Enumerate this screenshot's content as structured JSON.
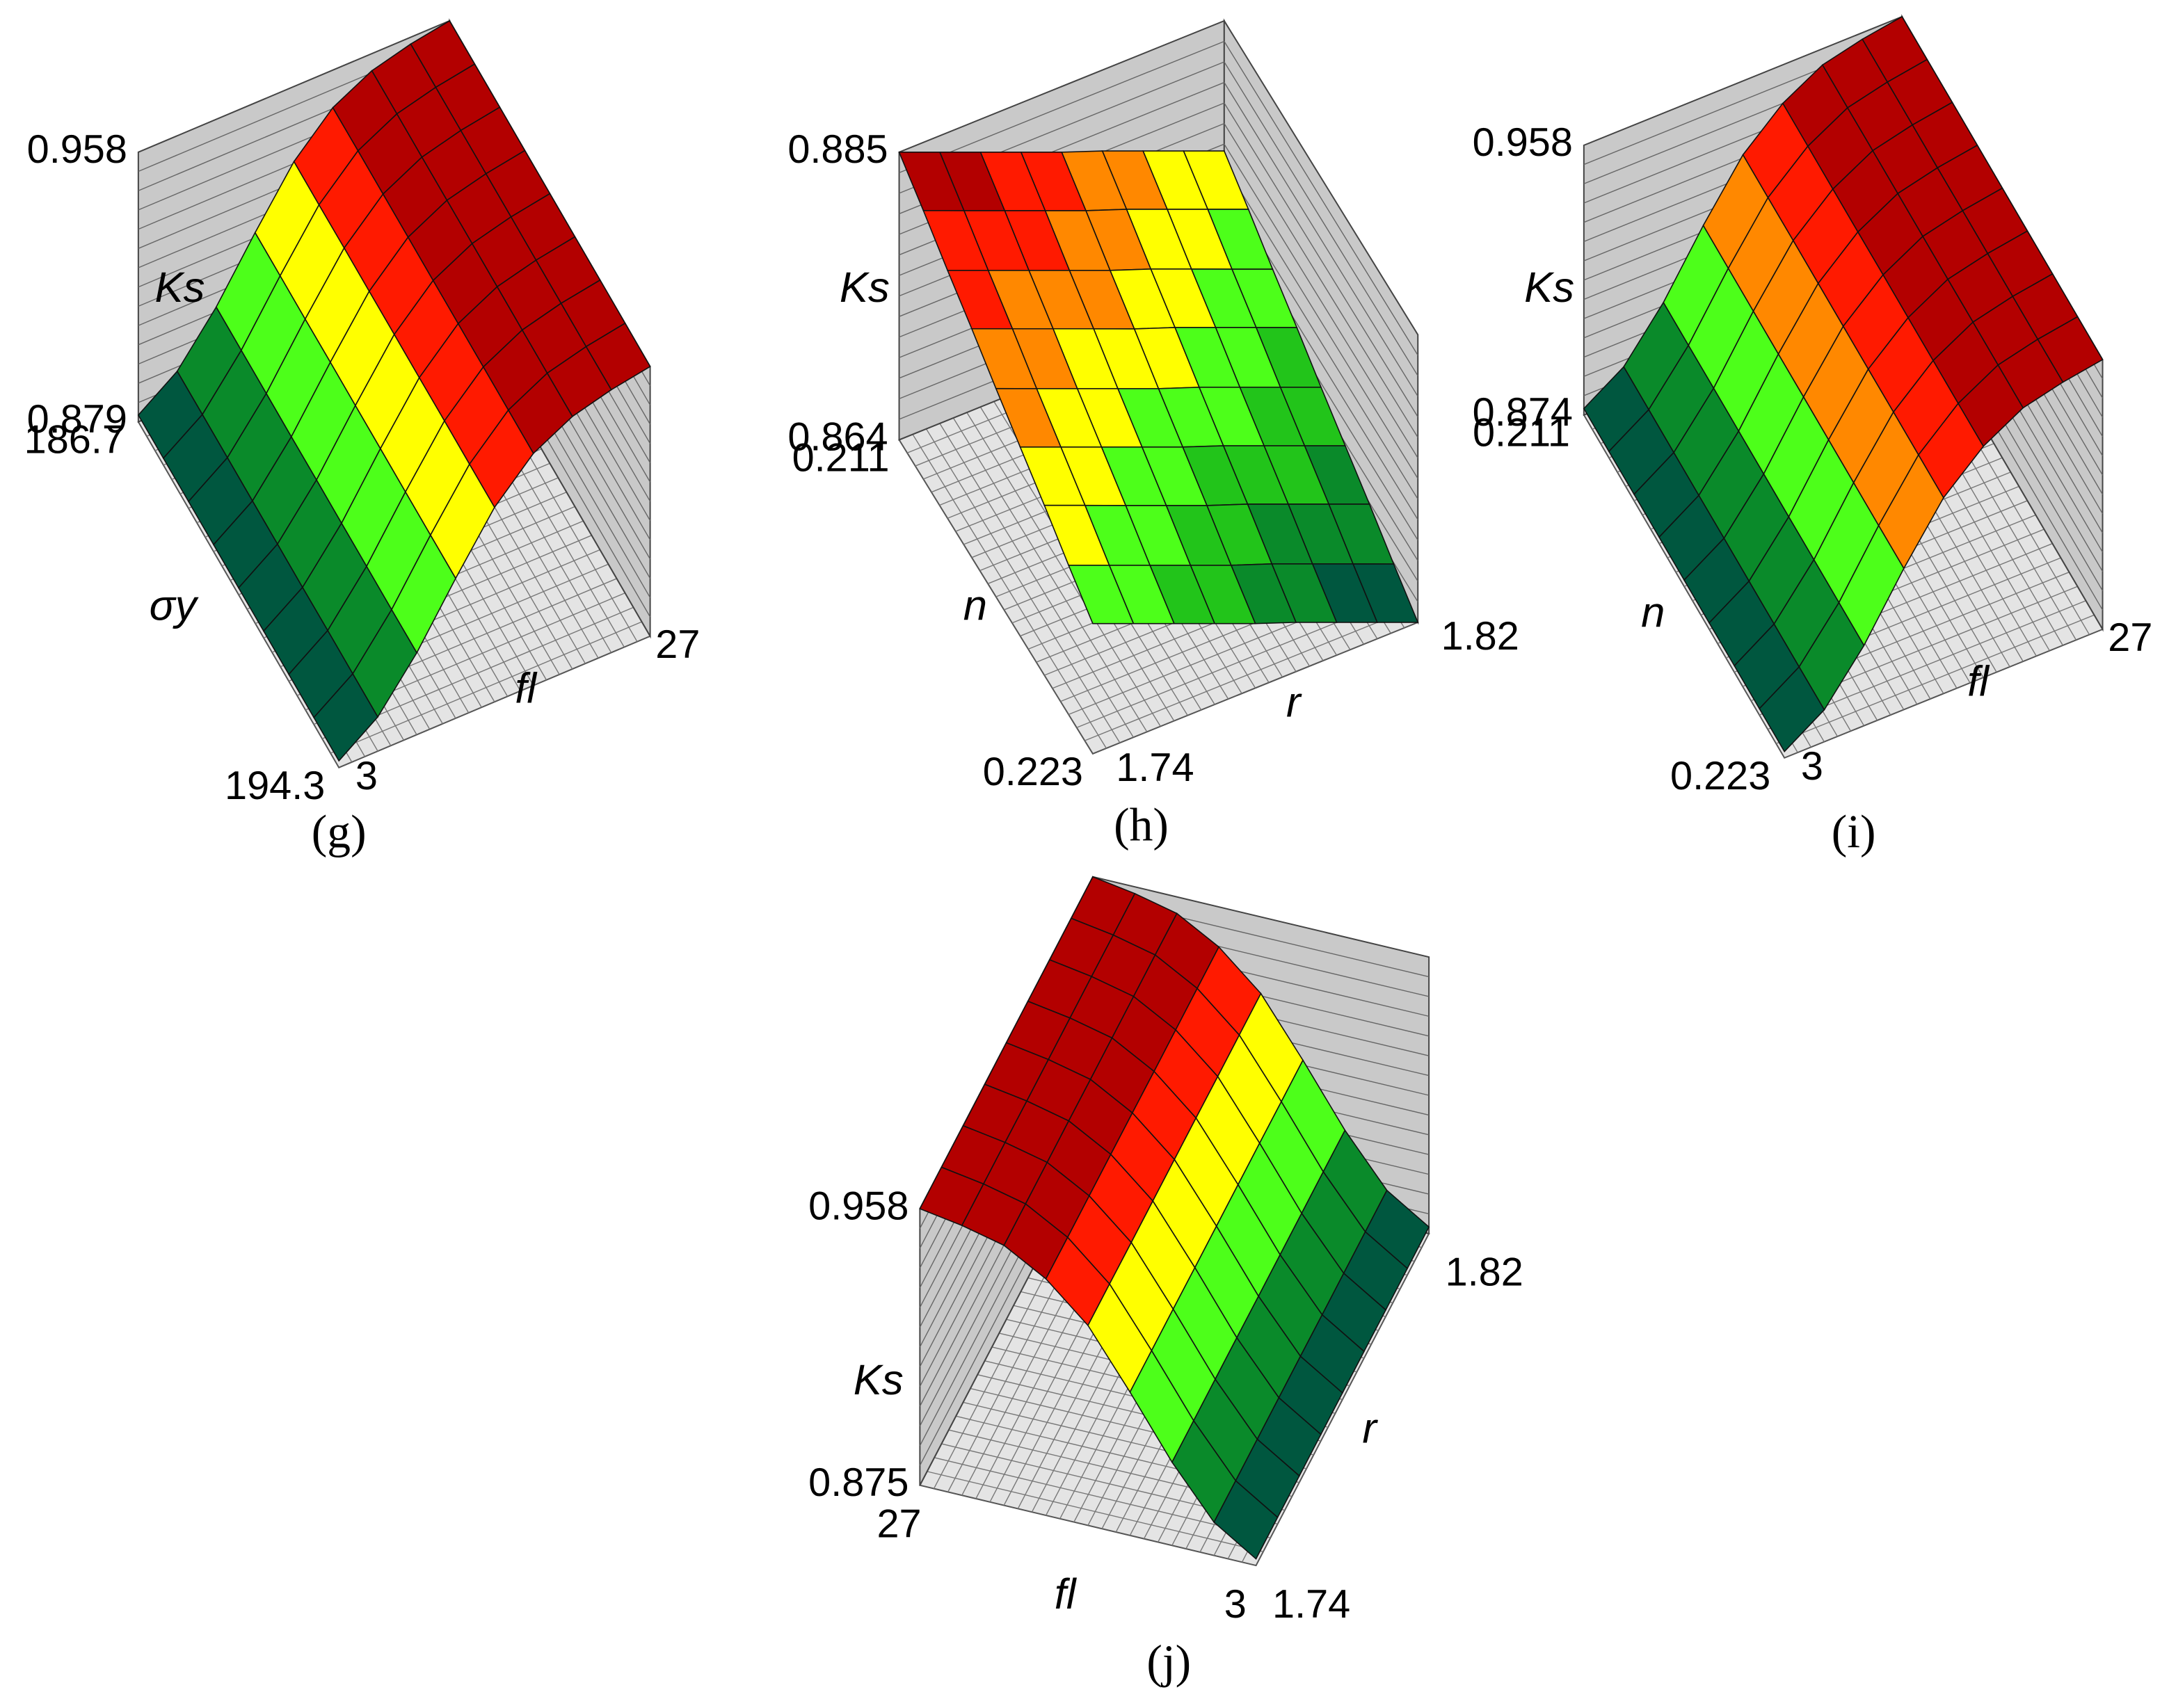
{
  "chart_data": [
    {
      "type": "surface",
      "label": "(g)",
      "xlabel": "σy",
      "ylabel": "fl",
      "zlabel": "Ks",
      "xlim": [
        186.7,
        194.3
      ],
      "ylim": [
        3,
        27
      ],
      "zlim": [
        0.879,
        0.958
      ],
      "xticks": [
        186.7,
        194.3
      ],
      "yticks": [
        3,
        27
      ],
      "zticks": [
        0.879,
        0.958
      ],
      "colors": [
        "#00573f",
        "#0a8a2a",
        "#22c41a",
        "#4dff1a",
        "#ffff00",
        "#ff8800",
        "#ff1a00",
        "#b30000"
      ],
      "x": [
        186.7,
        187.65,
        188.6,
        189.55,
        190.5,
        191.45,
        192.4,
        193.35,
        194.3
      ],
      "y": [
        3,
        6,
        9,
        12,
        15,
        18,
        21,
        24,
        27
      ],
      "z": [
        [
          0.881,
          0.889,
          0.903,
          0.92,
          0.936,
          0.947,
          0.953,
          0.956,
          0.958
        ],
        [
          0.881,
          0.889,
          0.903,
          0.92,
          0.936,
          0.947,
          0.953,
          0.956,
          0.958
        ],
        [
          0.881,
          0.889,
          0.903,
          0.92,
          0.936,
          0.947,
          0.953,
          0.956,
          0.958
        ],
        [
          0.881,
          0.889,
          0.903,
          0.92,
          0.936,
          0.947,
          0.953,
          0.956,
          0.958
        ],
        [
          0.881,
          0.889,
          0.903,
          0.92,
          0.936,
          0.947,
          0.953,
          0.956,
          0.958
        ],
        [
          0.881,
          0.889,
          0.903,
          0.92,
          0.936,
          0.947,
          0.953,
          0.956,
          0.958
        ],
        [
          0.881,
          0.889,
          0.903,
          0.92,
          0.936,
          0.947,
          0.953,
          0.956,
          0.958
        ],
        [
          0.881,
          0.889,
          0.903,
          0.92,
          0.936,
          0.947,
          0.953,
          0.956,
          0.958
        ],
        [
          0.881,
          0.889,
          0.903,
          0.92,
          0.936,
          0.947,
          0.953,
          0.956,
          0.958
        ]
      ]
    },
    {
      "type": "surface",
      "label": "(h)",
      "xlabel": "n",
      "ylabel": "r",
      "zlabel": "Ks",
      "xlim": [
        0.211,
        0.223
      ],
      "ylim": [
        1.74,
        1.82
      ],
      "zlim": [
        0.864,
        0.885
      ],
      "xticks": [
        0.211,
        0.223
      ],
      "yticks": [
        1.74,
        1.82
      ],
      "zticks": [
        0.864,
        0.885
      ],
      "colors": [
        "#00573f",
        "#0a8a2a",
        "#22c41a",
        "#4dff1a",
        "#ffff00",
        "#ff8800",
        "#ff1a00",
        "#b30000"
      ],
      "x": [
        0.211,
        0.2125,
        0.214,
        0.2155,
        0.217,
        0.2185,
        0.22,
        0.2215,
        0.223
      ],
      "y": [
        1.74,
        1.75,
        1.76,
        1.77,
        1.78,
        1.79,
        1.8,
        1.81,
        1.82
      ],
      "z": [
        [
          0.885,
          0.8838,
          0.8826,
          0.8814,
          0.8802,
          0.8791,
          0.8779,
          0.8767,
          0.8755
        ],
        [
          0.8836,
          0.8824,
          0.8812,
          0.88,
          0.8788,
          0.8777,
          0.8765,
          0.8753,
          0.8741
        ],
        [
          0.8821,
          0.8809,
          0.8797,
          0.8785,
          0.8773,
          0.8762,
          0.875,
          0.8738,
          0.8726
        ],
        [
          0.8807,
          0.8795,
          0.8783,
          0.8771,
          0.8759,
          0.8748,
          0.8736,
          0.8724,
          0.8712
        ],
        [
          0.8792,
          0.878,
          0.8768,
          0.8756,
          0.8744,
          0.8733,
          0.8721,
          0.8709,
          0.8697
        ],
        [
          0.8778,
          0.8766,
          0.8754,
          0.8742,
          0.873,
          0.8719,
          0.8707,
          0.8695,
          0.8683
        ],
        [
          0.8764,
          0.8752,
          0.874,
          0.8728,
          0.8716,
          0.8705,
          0.8693,
          0.8681,
          0.8669
        ],
        [
          0.8749,
          0.8737,
          0.8725,
          0.8713,
          0.8701,
          0.869,
          0.8678,
          0.8666,
          0.8654
        ],
        [
          0.8735,
          0.8723,
          0.8711,
          0.8699,
          0.8687,
          0.8676,
          0.8664,
          0.8652,
          0.864
        ]
      ]
    },
    {
      "type": "surface",
      "label": "(i)",
      "xlabel": "n",
      "ylabel": "fl",
      "zlabel": "Ks",
      "xlim": [
        0.211,
        0.223
      ],
      "ylim": [
        3,
        27
      ],
      "zlim": [
        0.874,
        0.958
      ],
      "xticks": [
        0.211,
        0.223
      ],
      "yticks": [
        3,
        27
      ],
      "zticks": [
        0.874,
        0.958
      ],
      "colors": [
        "#00573f",
        "#0a8a2a",
        "#22c41a",
        "#4dff1a",
        "#ffff00",
        "#ff8800",
        "#ff1a00",
        "#b30000"
      ],
      "x": [
        0.211,
        0.2125,
        0.214,
        0.2155,
        0.217,
        0.2185,
        0.22,
        0.2215,
        0.223
      ],
      "y": [
        3,
        6,
        9,
        12,
        15,
        18,
        21,
        24,
        27
      ],
      "z": [
        [
          0.876,
          0.884,
          0.899,
          0.918,
          0.935,
          0.946,
          0.953,
          0.956,
          0.958
        ],
        [
          0.876,
          0.884,
          0.899,
          0.918,
          0.935,
          0.946,
          0.953,
          0.956,
          0.958
        ],
        [
          0.876,
          0.884,
          0.899,
          0.918,
          0.935,
          0.946,
          0.953,
          0.956,
          0.958
        ],
        [
          0.876,
          0.884,
          0.899,
          0.918,
          0.935,
          0.946,
          0.953,
          0.956,
          0.958
        ],
        [
          0.876,
          0.884,
          0.899,
          0.918,
          0.935,
          0.946,
          0.953,
          0.956,
          0.958
        ],
        [
          0.876,
          0.884,
          0.899,
          0.918,
          0.935,
          0.946,
          0.953,
          0.956,
          0.958
        ],
        [
          0.876,
          0.884,
          0.899,
          0.918,
          0.935,
          0.946,
          0.953,
          0.956,
          0.958
        ],
        [
          0.876,
          0.884,
          0.899,
          0.918,
          0.935,
          0.946,
          0.953,
          0.956,
          0.958
        ],
        [
          0.876,
          0.884,
          0.899,
          0.918,
          0.935,
          0.946,
          0.953,
          0.956,
          0.958
        ]
      ]
    },
    {
      "type": "surface",
      "label": "(j)",
      "xlabel": "fl",
      "ylabel": "r",
      "zlabel": "Ks",
      "xlim": [
        3,
        27
      ],
      "ylim": [
        1.74,
        1.82
      ],
      "zlim": [
        0.875,
        0.958
      ],
      "xticks": [
        3,
        27
      ],
      "yticks": [
        1.74,
        1.82
      ],
      "zticks": [
        0.875,
        0.958
      ],
      "colors": [
        "#00573f",
        "#0a8a2a",
        "#22c41a",
        "#4dff1a",
        "#ffff00",
        "#ff8800",
        "#ff1a00",
        "#b30000"
      ],
      "x": [
        3,
        6,
        9,
        12,
        15,
        18,
        21,
        24,
        27
      ],
      "y": [
        1.74,
        1.75,
        1.76,
        1.77,
        1.78,
        1.79,
        1.8,
        1.81,
        1.82
      ],
      "z": [
        [
          0.877,
          0.877,
          0.877,
          0.877,
          0.877,
          0.877,
          0.877,
          0.877,
          0.877
        ],
        [
          0.885,
          0.885,
          0.885,
          0.885,
          0.885,
          0.885,
          0.885,
          0.885,
          0.885
        ],
        [
          0.9,
          0.9,
          0.9,
          0.9,
          0.9,
          0.9,
          0.9,
          0.9,
          0.9
        ],
        [
          0.918,
          0.918,
          0.918,
          0.918,
          0.918,
          0.918,
          0.918,
          0.918,
          0.918
        ],
        [
          0.935,
          0.935,
          0.935,
          0.935,
          0.935,
          0.935,
          0.935,
          0.935,
          0.935
        ],
        [
          0.946,
          0.946,
          0.946,
          0.946,
          0.946,
          0.946,
          0.946,
          0.946,
          0.946
        ],
        [
          0.953,
          0.953,
          0.953,
          0.953,
          0.953,
          0.953,
          0.953,
          0.953,
          0.953
        ],
        [
          0.956,
          0.956,
          0.956,
          0.956,
          0.956,
          0.956,
          0.956,
          0.956,
          0.956
        ],
        [
          0.958,
          0.958,
          0.958,
          0.958,
          0.958,
          0.958,
          0.958,
          0.958,
          0.958
        ]
      ]
    }
  ]
}
